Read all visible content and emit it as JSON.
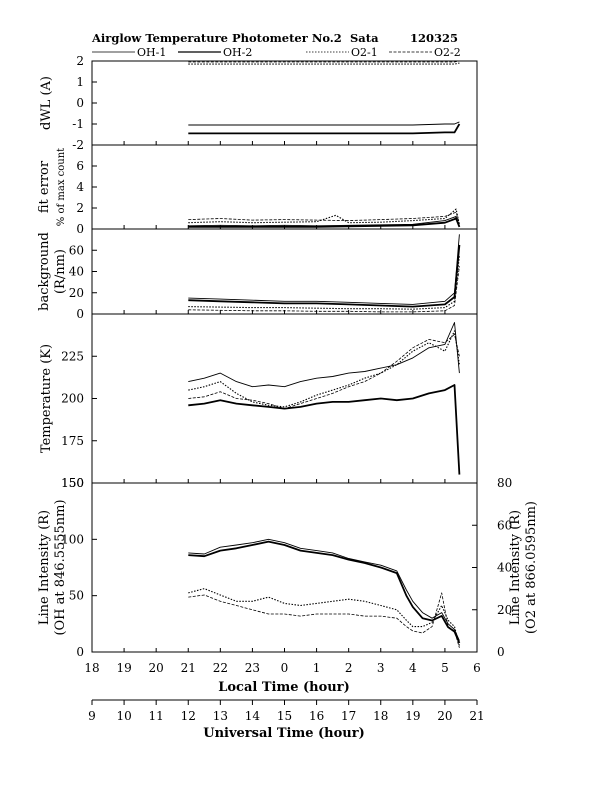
{
  "chart_data": {
    "type": "line",
    "title": "Airglow Temperature Photometer No.2",
    "station": "Sata",
    "date_code": "120325",
    "legend": [
      "OH-1",
      "OH-2",
      "O2-1",
      "O2-2"
    ],
    "x_local": {
      "label": "Local Time (hour)",
      "ticks": [
        "18",
        "19",
        "20",
        "21",
        "22",
        "23",
        "0",
        "1",
        "2",
        "3",
        "4",
        "5",
        "6"
      ]
    },
    "x_ut": {
      "label": "Universal Time (hour)",
      "ticks": [
        "9",
        "10",
        "11",
        "12",
        "13",
        "14",
        "15",
        "16",
        "17",
        "18",
        "19",
        "20",
        "21"
      ]
    },
    "panels": [
      {
        "id": "dwl",
        "ylabel": [
          "dWL (A)"
        ],
        "ylim": [
          -2,
          2
        ],
        "yticks": [
          "-2",
          "-1",
          "0",
          "1",
          "2"
        ],
        "series": [
          {
            "name": "OH-1",
            "x": [
              12.0,
              13,
              14,
              15,
              16,
              17,
              18,
              19,
              20,
              20.3,
              20.45
            ],
            "y": [
              -1.05,
              -1.05,
              -1.05,
              -1.05,
              -1.05,
              -1.05,
              -1.05,
              -1.05,
              -1.0,
              -1.0,
              -0.9
            ]
          },
          {
            "name": "OH-2",
            "x": [
              12.0,
              13,
              14,
              15,
              16,
              17,
              18,
              19,
              20,
              20.3,
              20.45
            ],
            "y": [
              -1.45,
              -1.45,
              -1.45,
              -1.45,
              -1.45,
              -1.45,
              -1.45,
              -1.45,
              -1.4,
              -1.4,
              -1.0
            ]
          },
          {
            "name": "O2-1",
            "x": [
              12.0,
              13,
              14,
              15,
              16,
              17,
              18,
              19,
              20,
              20.3,
              20.45
            ],
            "y": [
              1.85,
              1.85,
              1.85,
              1.85,
              1.85,
              1.85,
              1.85,
              1.85,
              1.85,
              1.85,
              1.9
            ]
          },
          {
            "name": "O2-2",
            "x": [
              12.0,
              13,
              14,
              15,
              16,
              17,
              18,
              19,
              20,
              20.3,
              20.45
            ],
            "y": [
              1.95,
              1.95,
              1.95,
              1.95,
              1.95,
              1.95,
              1.95,
              1.95,
              1.95,
              1.95,
              2.0
            ]
          }
        ]
      },
      {
        "id": "fit",
        "ylabel": [
          "fit error",
          "% of max count"
        ],
        "ylim": [
          0,
          8
        ],
        "yticks": [
          "0",
          "2",
          "4",
          "6"
        ],
        "series": [
          {
            "name": "OH-1",
            "x": [
              12.0,
              13,
              14,
              15,
              16,
              17,
              18,
              19,
              20,
              20.35,
              20.45
            ],
            "y": [
              0.3,
              0.35,
              0.3,
              0.35,
              0.3,
              0.35,
              0.4,
              0.45,
              0.8,
              1.2,
              0.3
            ]
          },
          {
            "name": "OH-2",
            "x": [
              12.0,
              13,
              14,
              15,
              16,
              17,
              18,
              19,
              20,
              20.35,
              20.45
            ],
            "y": [
              0.2,
              0.2,
              0.2,
              0.2,
              0.2,
              0.25,
              0.3,
              0.35,
              0.6,
              1.0,
              0.2
            ]
          },
          {
            "name": "O2-1",
            "x": [
              12.0,
              13,
              14,
              15,
              16,
              16.6,
              17,
              18,
              19,
              20,
              20.35,
              20.45
            ],
            "y": [
              0.6,
              0.7,
              0.6,
              0.65,
              0.7,
              1.3,
              0.6,
              0.65,
              0.8,
              1.0,
              1.9,
              0.4
            ]
          },
          {
            "name": "O2-2",
            "x": [
              12.0,
              13,
              14,
              15,
              16,
              17,
              18,
              19,
              20,
              20.35,
              20.45
            ],
            "y": [
              0.9,
              1.0,
              0.85,
              0.9,
              0.85,
              0.8,
              0.9,
              1.0,
              1.2,
              1.6,
              0.5
            ]
          }
        ]
      },
      {
        "id": "bg",
        "ylabel": [
          "background",
          "(R/nm)"
        ],
        "ylim": [
          0,
          80
        ],
        "yticks": [
          "0",
          "20",
          "40",
          "60"
        ],
        "series": [
          {
            "name": "OH-1",
            "x": [
              12.0,
              13,
              14,
              15,
              16,
              17,
              18,
              19,
              20,
              20.3,
              20.45
            ],
            "y": [
              15,
              14,
              13,
              12,
              12,
              11,
              10,
              9,
              12,
              20,
              75
            ]
          },
          {
            "name": "OH-2",
            "x": [
              12.0,
              13,
              14,
              15,
              16,
              17,
              18,
              19,
              20,
              20.3,
              20.45
            ],
            "y": [
              13,
              12,
              11,
              10,
              10,
              9,
              8,
              7,
              9,
              16,
              65
            ]
          },
          {
            "name": "O2-1",
            "x": [
              12.0,
              13,
              14,
              15,
              16,
              17,
              18,
              19,
              20,
              20.3,
              20.45
            ],
            "y": [
              7,
              6.5,
              6,
              6,
              5.5,
              5,
              5,
              4.5,
              6,
              12,
              55
            ]
          },
          {
            "name": "O2-2",
            "x": [
              12.0,
              13,
              14,
              15,
              16,
              17,
              18,
              19,
              20,
              20.3,
              20.45
            ],
            "y": [
              4,
              3.5,
              3,
              3,
              2.5,
              2.5,
              2,
              2,
              3,
              8,
              45
            ]
          }
        ]
      },
      {
        "id": "temp",
        "ylabel": [
          "Temperature (K)"
        ],
        "ylim": [
          150,
          250
        ],
        "yticks": [
          "150",
          "175",
          "200",
          "225"
        ],
        "series": [
          {
            "name": "OH-1",
            "x": [
              12.0,
              12.5,
              13,
              13.5,
              14,
              14.5,
              15,
              15.5,
              16,
              16.5,
              17,
              17.5,
              18,
              18.5,
              19,
              19.5,
              20,
              20.3,
              20.45
            ],
            "y": [
              210,
              212,
              215,
              210,
              207,
              208,
              207,
              210,
              212,
              213,
              215,
              216,
              218,
              220,
              224,
              230,
              232,
              245,
              215
            ]
          },
          {
            "name": "OH-2",
            "x": [
              12.0,
              12.5,
              13,
              13.5,
              14,
              14.5,
              15,
              15.5,
              16,
              16.5,
              17,
              17.5,
              18,
              18.5,
              19,
              19.5,
              20,
              20.3,
              20.45
            ],
            "y": [
              196,
              197,
              199,
              197,
              196,
              195,
              194,
              195,
              197,
              198,
              198,
              199,
              200,
              199,
              200,
              203,
              205,
              208,
              155
            ]
          },
          {
            "name": "O2-1",
            "x": [
              12.0,
              12.5,
              13,
              13.5,
              14,
              14.5,
              15,
              15.5,
              16,
              16.5,
              17,
              17.5,
              18,
              18.5,
              19,
              19.5,
              20,
              20.3,
              20.45
            ],
            "y": [
              205,
              207,
              210,
              203,
              198,
              196,
              195,
              198,
              202,
              205,
              208,
              212,
              215,
              220,
              228,
              233,
              228,
              240,
              220
            ]
          },
          {
            "name": "O2-2",
            "x": [
              12.0,
              12.5,
              13,
              13.5,
              14,
              14.5,
              15,
              15.5,
              16,
              16.5,
              17,
              17.5,
              18,
              18.5,
              19,
              19.5,
              20,
              20.3,
              20.45
            ],
            "y": [
              200,
              201,
              204,
              200,
              199,
              197,
              194,
              197,
              200,
              203,
              207,
              210,
              215,
              222,
              230,
              235,
              233,
              238,
              225
            ]
          }
        ]
      },
      {
        "id": "int",
        "ylabel": [
          "Line Intensity (R)",
          "(OH at 846.5555nm)"
        ],
        "ylim": [
          0,
          150
        ],
        "yticks": [
          "0",
          "50",
          "100",
          "150"
        ],
        "y2label": [
          "Line Intensity (R)",
          "(O2 at 866.0595nm)"
        ],
        "y2lim": [
          0,
          80
        ],
        "y2ticks": [
          "0",
          "20",
          "40",
          "60",
          "80"
        ],
        "series": [
          {
            "name": "OH-1",
            "axis": "left",
            "x": [
              12.0,
              12.5,
              13,
              13.5,
              14,
              14.5,
              15,
              15.5,
              16,
              16.5,
              17,
              17.5,
              18,
              18.5,
              18.8,
              19,
              19.3,
              19.6,
              19.9,
              20.1,
              20.3,
              20.45
            ],
            "y": [
              88,
              87,
              93,
              95,
              97,
              100,
              97,
              92,
              90,
              88,
              83,
              80,
              77,
              72,
              55,
              45,
              35,
              30,
              35,
              25,
              20,
              10
            ]
          },
          {
            "name": "OH-2",
            "axis": "left",
            "x": [
              12.0,
              12.5,
              13,
              13.5,
              14,
              14.5,
              15,
              15.5,
              16,
              16.5,
              17,
              17.5,
              18,
              18.5,
              18.8,
              19,
              19.3,
              19.6,
              19.9,
              20.1,
              20.3,
              20.45
            ],
            "y": [
              86,
              85,
              90,
              92,
              95,
              98,
              95,
              90,
              88,
              86,
              82,
              79,
              75,
              70,
              50,
              40,
              30,
              28,
              32,
              22,
              18,
              8
            ]
          },
          {
            "name": "O2-1",
            "axis": "right",
            "x": [
              12.0,
              12.5,
              13,
              13.5,
              14,
              14.5,
              15,
              15.5,
              16,
              16.5,
              17,
              17.5,
              18,
              18.5,
              18.8,
              19,
              19.3,
              19.6,
              19.9,
              20.1,
              20.3,
              20.45
            ],
            "y": [
              28,
              30,
              27,
              24,
              24,
              26,
              23,
              22,
              23,
              24,
              25,
              24,
              22,
              20,
              15,
              12,
              12,
              14,
              22,
              15,
              12,
              3
            ]
          },
          {
            "name": "O2-2",
            "axis": "right",
            "x": [
              12.0,
              12.5,
              13,
              13.5,
              14,
              14.5,
              15,
              15.5,
              16,
              16.5,
              17,
              17.5,
              18,
              18.5,
              18.8,
              19,
              19.3,
              19.6,
              19.9,
              20.1,
              20.3,
              20.45
            ],
            "y": [
              26,
              27,
              24,
              22,
              20,
              18,
              18,
              17,
              18,
              18,
              18,
              17,
              17,
              16,
              12,
              10,
              9,
              12,
              28,
              12,
              10,
              2
            ]
          }
        ]
      }
    ]
  }
}
